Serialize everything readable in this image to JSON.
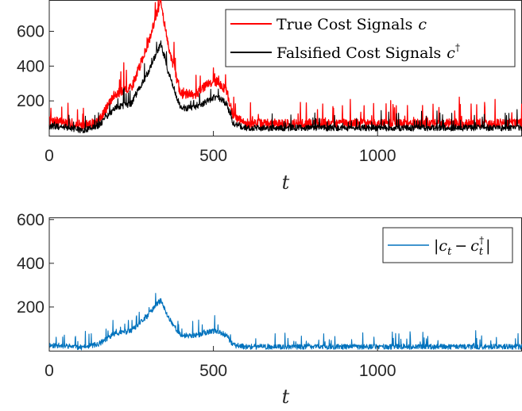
{
  "chart_data": [
    {
      "type": "line",
      "xlabel": "t",
      "xlim": [
        0,
        1440
      ],
      "ylim": [
        0,
        780
      ],
      "xticks": [
        0,
        500,
        1000
      ],
      "yticks": [
        200,
        400,
        600
      ],
      "legend_position": "top-right",
      "series": [
        {
          "name": "True Cost Signals",
          "symbol": "c",
          "superscript": "",
          "color": "#ff0000",
          "trend_x": [
            0,
            50,
            100,
            150,
            200,
            250,
            300,
            325,
            340,
            360,
            400,
            450,
            480,
            510,
            540,
            560,
            600,
            700,
            800,
            1000,
            1200,
            1440
          ],
          "trend_y": [
            85,
            75,
            55,
            80,
            240,
            275,
            520,
            690,
            770,
            540,
            240,
            240,
            295,
            310,
            260,
            110,
            70,
            70,
            70,
            70,
            70,
            70
          ],
          "noise": 90
        },
        {
          "name": "Falsified Cost Signals",
          "symbol": "c",
          "superscript": "†",
          "color": "#000000",
          "trend_x": [
            0,
            50,
            100,
            150,
            200,
            250,
            300,
            325,
            340,
            360,
            400,
            450,
            480,
            510,
            540,
            560,
            600,
            700,
            800,
            1000,
            1200,
            1440
          ],
          "trend_y": [
            55,
            50,
            30,
            55,
            160,
            185,
            360,
            470,
            530,
            380,
            160,
            160,
            200,
            225,
            185,
            70,
            45,
            45,
            45,
            45,
            45,
            45
          ],
          "noise": 60
        }
      ]
    },
    {
      "type": "line",
      "xlabel": "t",
      "xlim": [
        0,
        1440
      ],
      "ylim": [
        0,
        610
      ],
      "xticks": [
        0,
        500,
        1000
      ],
      "yticks": [
        200,
        400,
        600
      ],
      "legend_position": "top-right",
      "series": [
        {
          "name": "|c_t − c_t^†|",
          "color": "#0072bd",
          "trend_x": [
            0,
            50,
            100,
            150,
            200,
            250,
            300,
            325,
            340,
            360,
            400,
            450,
            480,
            510,
            540,
            560,
            600,
            700,
            800,
            1000,
            1200,
            1440
          ],
          "trend_y": [
            25,
            22,
            15,
            30,
            80,
            90,
            160,
            210,
            230,
            160,
            70,
            70,
            85,
            90,
            70,
            25,
            18,
            18,
            18,
            18,
            18,
            18
          ],
          "noise": 40
        }
      ]
    }
  ]
}
